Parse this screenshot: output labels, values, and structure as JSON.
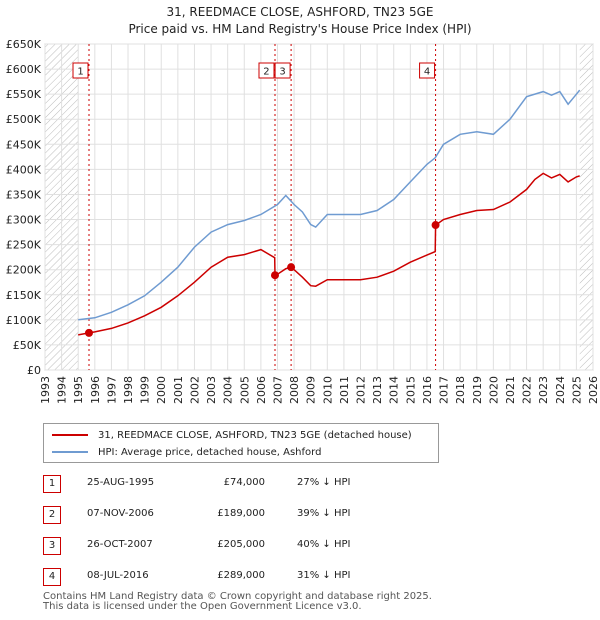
{
  "chart_data": {
    "type": "line",
    "title": "31, REEDMACE CLOSE, ASHFORD, TN23 5GE",
    "subtitle": "Price paid vs. HM Land Registry's House Price Index (HPI)",
    "xlabel": "",
    "ylabel": "",
    "xlim": [
      1993,
      2026
    ],
    "ylim": [
      0,
      650000
    ],
    "grid": true,
    "yticks": [
      {
        "value": 0,
        "label": "£0"
      },
      {
        "value": 50000,
        "label": "£50K"
      },
      {
        "value": 100000,
        "label": "£100K"
      },
      {
        "value": 150000,
        "label": "£150K"
      },
      {
        "value": 200000,
        "label": "£200K"
      },
      {
        "value": 250000,
        "label": "£250K"
      },
      {
        "value": 300000,
        "label": "£300K"
      },
      {
        "value": 350000,
        "label": "£350K"
      },
      {
        "value": 400000,
        "label": "£400K"
      },
      {
        "value": 450000,
        "label": "£450K"
      },
      {
        "value": 500000,
        "label": "£500K"
      },
      {
        "value": 550000,
        "label": "£550K"
      },
      {
        "value": 600000,
        "label": "£600K"
      },
      {
        "value": 650000,
        "label": "£650K"
      }
    ],
    "xticks": [
      "1993",
      "1994",
      "1995",
      "1996",
      "1997",
      "1998",
      "1999",
      "2000",
      "2001",
      "2002",
      "2003",
      "2004",
      "2005",
      "2006",
      "2007",
      "2008",
      "2009",
      "2010",
      "2011",
      "2012",
      "2013",
      "2014",
      "2015",
      "2016",
      "2017",
      "2018",
      "2019",
      "2020",
      "2021",
      "2022",
      "2023",
      "2024",
      "2025",
      "2026"
    ],
    "data_range": [
      1995.0,
      2025.2
    ],
    "series": [
      {
        "name": "31, REEDMACE CLOSE, ASHFORD, TN23 5GE (detached house)",
        "color": "#cc0000",
        "x": [
          1995.0,
          1995.65,
          1996.0,
          1997.0,
          1998.0,
          1999.0,
          2000.0,
          2001.0,
          2002.0,
          2003.0,
          2004.0,
          2005.0,
          2006.0,
          2006.83,
          2006.85,
          2007.0,
          2007.5,
          2007.82,
          2008.0,
          2008.5,
          2009.0,
          2009.3,
          2010.0,
          2011.0,
          2012.0,
          2013.0,
          2014.0,
          2015.0,
          2016.0,
          2016.5,
          2016.52,
          2017.0,
          2018.0,
          2019.0,
          2020.0,
          2021.0,
          2022.0,
          2022.5,
          2023.0,
          2023.5,
          2024.0,
          2024.5,
          2025.0,
          2025.2
        ],
        "y": [
          70000,
          74000,
          76000,
          83000,
          94000,
          108000,
          125000,
          148000,
          175000,
          205000,
          225000,
          230000,
          240000,
          224000,
          189000,
          191000,
          202000,
          205000,
          200000,
          185000,
          168000,
          167000,
          180000,
          180000,
          180000,
          185000,
          197000,
          215000,
          229000,
          236000,
          289000,
          300000,
          310000,
          318000,
          320000,
          335000,
          360000,
          380000,
          392000,
          383000,
          390000,
          375000,
          385000,
          387000
        ]
      },
      {
        "name": "HPI: Average price, detached house, Ashford",
        "color": "#6f9bd1",
        "x": [
          1995.0,
          1996.0,
          1997.0,
          1998.0,
          1999.0,
          2000.0,
          2001.0,
          2002.0,
          2003.0,
          2004.0,
          2005.0,
          2006.0,
          2007.0,
          2007.5,
          2008.0,
          2008.5,
          2009.0,
          2009.3,
          2010.0,
          2011.0,
          2012.0,
          2013.0,
          2014.0,
          2015.0,
          2016.0,
          2016.5,
          2017.0,
          2018.0,
          2019.0,
          2020.0,
          2021.0,
          2022.0,
          2023.0,
          2023.5,
          2024.0,
          2024.5,
          2025.0,
          2025.2
        ],
        "y": [
          100000,
          104000,
          115000,
          130000,
          148000,
          175000,
          205000,
          245000,
          275000,
          290000,
          298000,
          310000,
          330000,
          348000,
          330000,
          315000,
          290000,
          285000,
          310000,
          310000,
          310000,
          318000,
          340000,
          375000,
          410000,
          423000,
          450000,
          470000,
          475000,
          470000,
          500000,
          545000,
          555000,
          548000,
          555000,
          530000,
          550000,
          558000
        ]
      }
    ],
    "sales": [
      {
        "label": "1",
        "x": 1995.65,
        "y": 74000
      },
      {
        "label": "2",
        "x": 2006.85,
        "y": 189000
      },
      {
        "label": "3",
        "x": 2007.82,
        "y": 205000
      },
      {
        "label": "4",
        "x": 2016.52,
        "y": 289000
      }
    ]
  },
  "legend": {
    "property_label": "31, REEDMACE CLOSE, ASHFORD, TN23 5GE (detached house)",
    "hpi_label": "HPI: Average price, detached house, Ashford"
  },
  "sales_table": [
    {
      "num": "1",
      "date": "25-AUG-1995",
      "price": "£74,000",
      "hpi": "27% ↓ HPI"
    },
    {
      "num": "2",
      "date": "07-NOV-2006",
      "price": "£189,000",
      "hpi": "39% ↓ HPI"
    },
    {
      "num": "3",
      "date": "26-OCT-2007",
      "price": "£205,000",
      "hpi": "40% ↓ HPI"
    },
    {
      "num": "4",
      "date": "08-JUL-2016",
      "price": "£289,000",
      "hpi": "31% ↓ HPI"
    }
  ],
  "footer": {
    "line1": "Contains HM Land Registry data © Crown copyright and database right 2025.",
    "line2": "This data is licensed under the Open Government Licence v3.0."
  }
}
